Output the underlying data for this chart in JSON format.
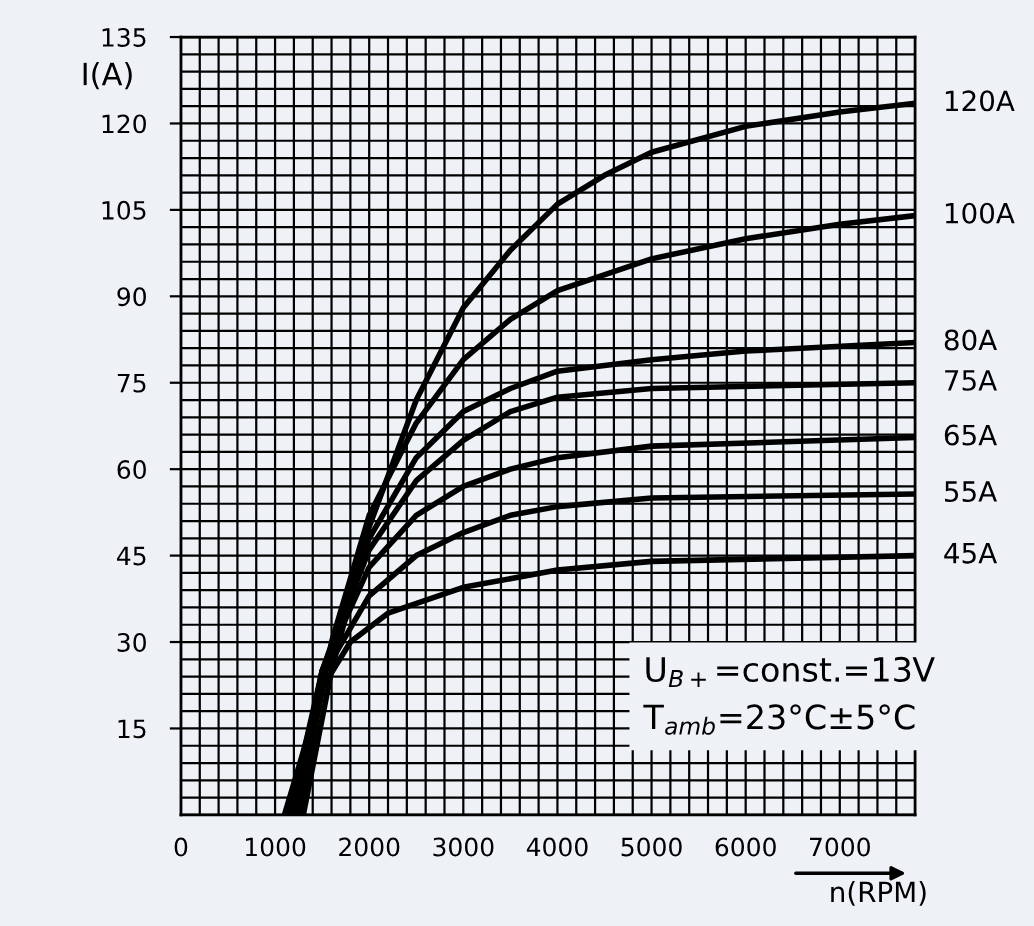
{
  "chart_data": {
    "type": "line",
    "xlabel": "n(RPM)",
    "ylabel": "I(A)",
    "xlim": [
      0,
      7800
    ],
    "ylim": [
      0,
      135
    ],
    "xticks": [
      0,
      1000,
      2000,
      3000,
      4000,
      5000,
      6000,
      7000
    ],
    "yticks": [
      15,
      30,
      45,
      60,
      75,
      90,
      105,
      120,
      135
    ],
    "grid": true,
    "marker": "none",
    "line_style": "solid",
    "annotations": [
      "U$_{B+}$=const.=13V",
      "T$_{amb}$=23°C±5°C"
    ],
    "series": [
      {
        "name": "120A",
        "color": "#000000",
        "x": [
          1300,
          1600,
          2000,
          2500,
          3000,
          3500,
          4000,
          4500,
          5000,
          6000,
          7000,
          7800
        ],
        "values": [
          0,
          25,
          50,
          72,
          88,
          98,
          106,
          111,
          115,
          119.5,
          122,
          123.5
        ]
      },
      {
        "name": "100A",
        "color": "#000000",
        "x": [
          1250,
          1600,
          2000,
          2500,
          3000,
          3500,
          4000,
          5000,
          6000,
          7000,
          7800
        ],
        "values": [
          0,
          30,
          52,
          68,
          79,
          86,
          91,
          96.5,
          100,
          102.5,
          104
        ]
      },
      {
        "name": "80A",
        "color": "#000000",
        "x": [
          1200,
          1500,
          2000,
          2500,
          3000,
          3500,
          4000,
          5000,
          6000,
          7800
        ],
        "values": [
          0,
          25,
          48,
          62,
          70,
          74,
          77,
          79,
          80.5,
          82
        ]
      },
      {
        "name": "75A",
        "color": "#000000",
        "x": [
          1200,
          1500,
          2000,
          2500,
          3000,
          3500,
          4000,
          5000,
          7800
        ],
        "values": [
          0,
          25,
          46,
          58,
          65,
          70,
          72.5,
          74,
          75
        ]
      },
      {
        "name": "65A",
        "color": "#000000",
        "x": [
          1150,
          1500,
          2000,
          2500,
          3000,
          3500,
          4000,
          5000,
          7800
        ],
        "values": [
          0,
          25,
          43,
          52,
          57,
          60,
          62,
          64,
          65.5
        ]
      },
      {
        "name": "55A",
        "color": "#000000",
        "x": [
          1150,
          1500,
          2000,
          2500,
          3000,
          3500,
          4000,
          5000,
          7800
        ],
        "values": [
          0,
          24,
          38,
          45,
          49,
          52,
          53.5,
          55,
          55.7
        ]
      },
      {
        "name": "45A",
        "color": "#000000",
        "x": [
          1100,
          1500,
          1800,
          2200,
          3000,
          4000,
          5000,
          7800
        ],
        "values": [
          0,
          22,
          30,
          35,
          39.5,
          42.5,
          44,
          45
        ]
      }
    ]
  }
}
